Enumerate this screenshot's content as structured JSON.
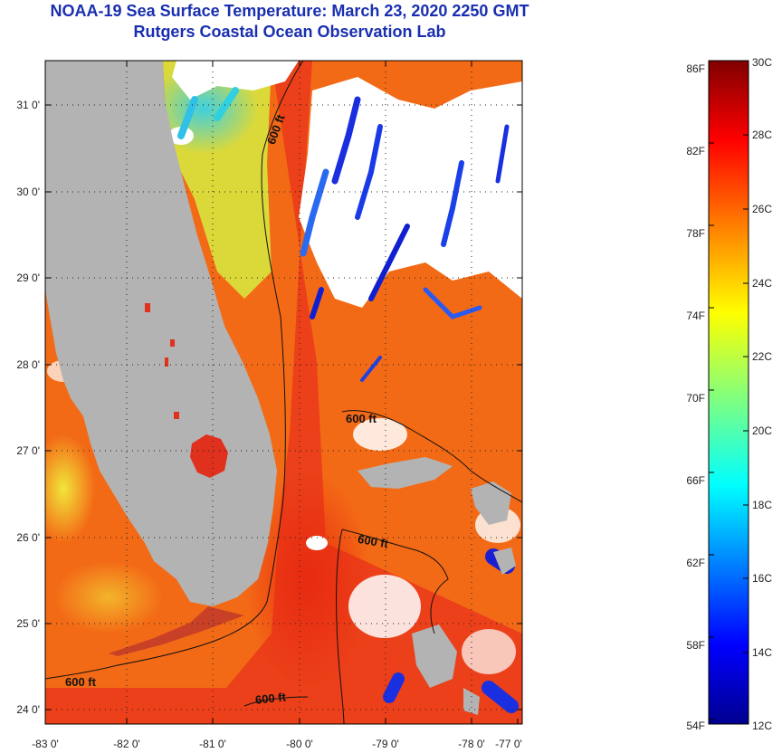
{
  "header": {
    "title": "NOAA-19 Sea Surface Temperature:  March 23, 2020 2250 GMT",
    "subtitle": "Rutgers Coastal Ocean Observation Lab"
  },
  "map": {
    "lat_labels": [
      "31 0'",
      "30 0'",
      "29 0'",
      "28 0'",
      "27 0'",
      "26 0'",
      "25 0'",
      "24 0'"
    ],
    "lon_labels": [
      "-83 0'",
      "-82 0'",
      "-81 0'",
      "-80 0'",
      "-79 0'",
      "-78 0'",
      "-77 0'"
    ],
    "contour_labels": [
      "600 ft",
      "600 ft",
      "600 ft",
      "600 ft",
      "600 ft"
    ]
  },
  "colorbar": {
    "f_labels": [
      "86F",
      "82F",
      "78F",
      "74F",
      "70F",
      "66F",
      "62F",
      "58F",
      "54F"
    ],
    "c_labels": [
      "30C",
      "28C",
      "26C",
      "24C",
      "22C",
      "20C",
      "18C",
      "16C",
      "14C",
      "12C"
    ],
    "min_c": 12,
    "max_c": 30
  },
  "colors": {
    "title": "#1a2fb0",
    "land": "#b3b3b3",
    "cloud": "#ffffff"
  }
}
